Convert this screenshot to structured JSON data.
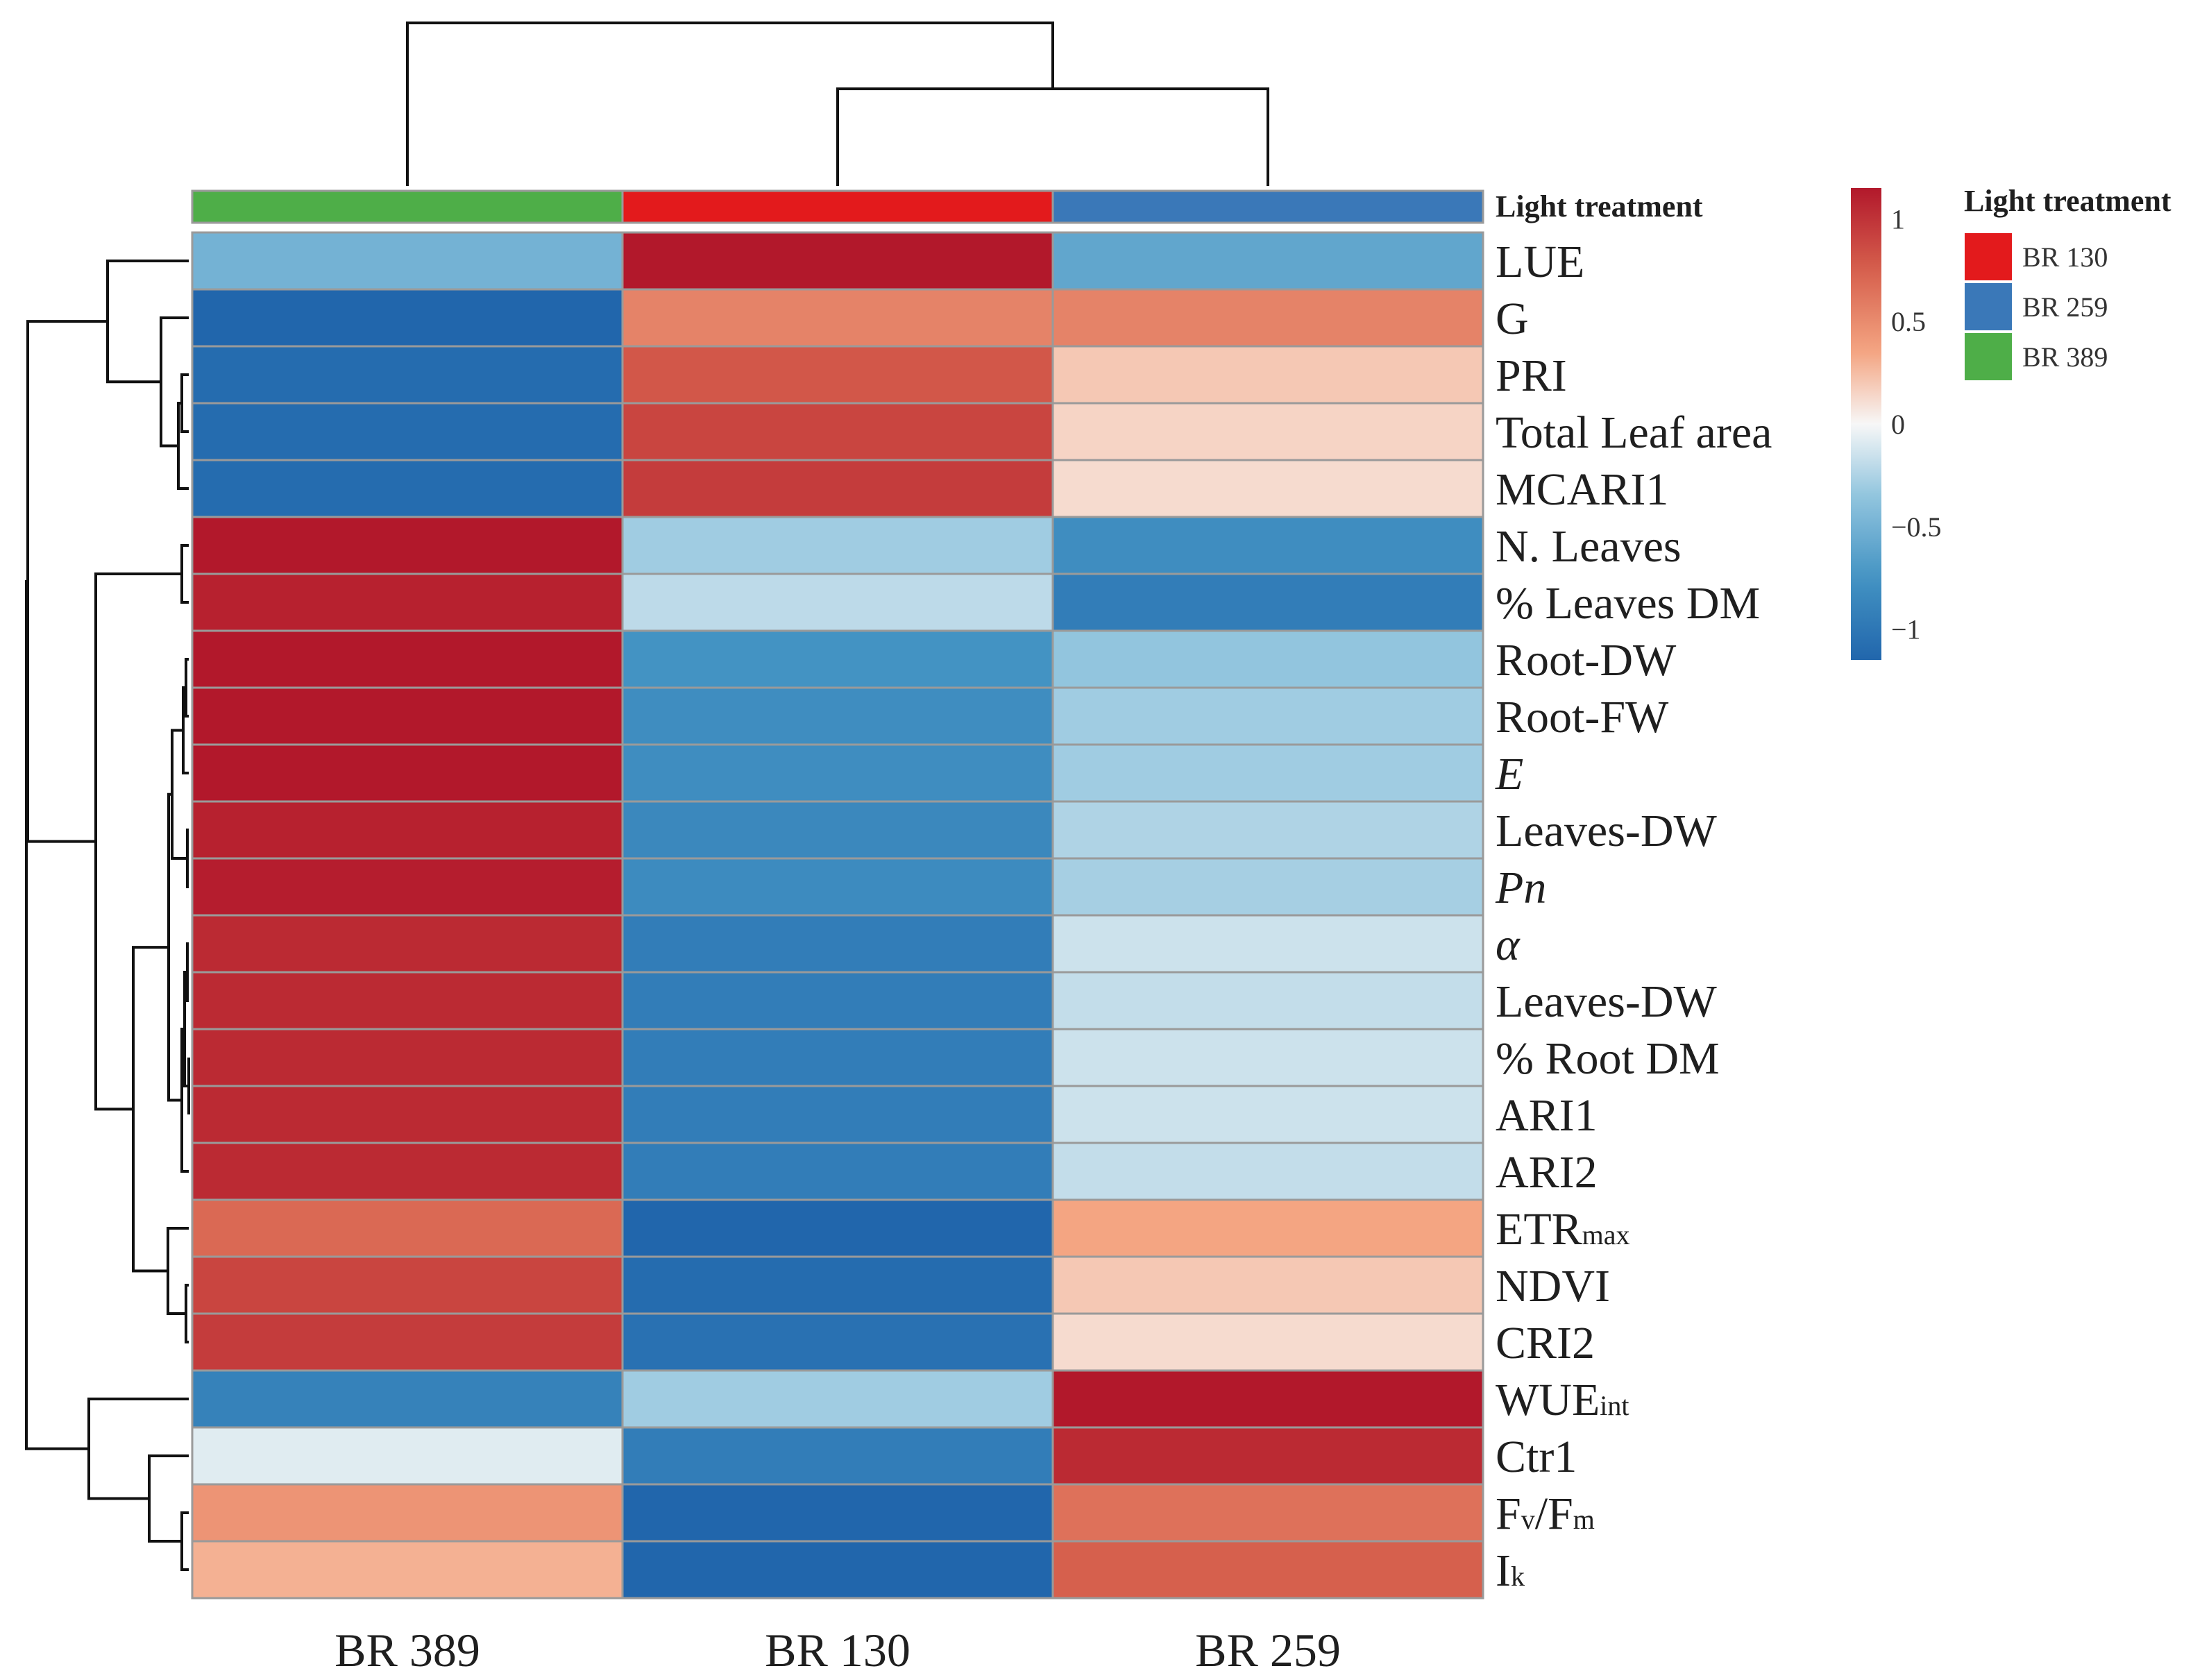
{
  "chart_data": {
    "type": "heatmap",
    "columns": [
      "BR 389",
      "BR 130",
      "BR 259"
    ],
    "annotation_title": "Light treatment",
    "annotation_legend": {
      "title": "Light treatment",
      "entries": [
        {
          "label": "BR 130",
          "color": "#e31a1c"
        },
        {
          "label": "BR 259",
          "color": "#3a78b8"
        },
        {
          "label": "BR 389",
          "color": "#4eae48"
        }
      ]
    },
    "column_annotation_colors": [
      "#4eae48",
      "#e31a1c",
      "#3a78b8"
    ],
    "color_scale": {
      "min": -1.15,
      "max": 1.15,
      "ticks": [
        {
          "value": 1,
          "label": "1"
        },
        {
          "value": 0.5,
          "label": "0.5"
        },
        {
          "value": 0,
          "label": "0"
        },
        {
          "value": -0.5,
          "label": "−0.5"
        },
        {
          "value": -1,
          "label": "−1"
        }
      ]
    },
    "rows": [
      {
        "label": "LUE",
        "sub": "",
        "italic": false,
        "values": [
          -0.5,
          1.15,
          -0.6
        ]
      },
      {
        "label": "G",
        "sub": "",
        "italic": false,
        "values": [
          -1.15,
          0.55,
          0.55
        ]
      },
      {
        "label": "PRI",
        "sub": "",
        "italic": false,
        "values": [
          -1.1,
          0.8,
          0.2
        ]
      },
      {
        "label": "Total Leaf area",
        "sub": "",
        "italic": false,
        "values": [
          -1.1,
          0.9,
          0.15
        ]
      },
      {
        "label": "MCARI1",
        "sub": "",
        "italic": false,
        "values": [
          -1.1,
          0.95,
          0.12
        ]
      },
      {
        "label": "N. Leaves",
        "sub": "",
        "italic": false,
        "values": [
          1.15,
          -0.3,
          -0.8
        ]
      },
      {
        "label": "% Leaves DM",
        "sub": "",
        "italic": false,
        "values": [
          1.1,
          -0.2,
          -0.95
        ]
      },
      {
        "label": "Root-DW",
        "sub": "",
        "italic": false,
        "values": [
          1.15,
          -0.75,
          -0.35
        ]
      },
      {
        "label": "Root-FW",
        "sub": "",
        "italic": false,
        "values": [
          1.15,
          -0.8,
          -0.3
        ]
      },
      {
        "label": "E",
        "sub": "",
        "italic": true,
        "values": [
          1.15,
          -0.8,
          -0.3
        ]
      },
      {
        "label": "Leaves-DW",
        "sub": "",
        "italic": false,
        "values": [
          1.1,
          -0.85,
          -0.25
        ]
      },
      {
        "label": "Pn",
        "sub": "",
        "italic": true,
        "values": [
          1.12,
          -0.82,
          -0.28
        ]
      },
      {
        "label": "α",
        "sub": "",
        "italic": true,
        "values": [
          1.05,
          -0.95,
          -0.15
        ]
      },
      {
        "label": "Leaves-DW",
        "sub": "",
        "italic": false,
        "values": [
          1.05,
          -0.95,
          -0.18
        ]
      },
      {
        "label": "% Root DM",
        "sub": "",
        "italic": false,
        "values": [
          1.05,
          -0.95,
          -0.15
        ]
      },
      {
        "label": "ARI1",
        "sub": "",
        "italic": false,
        "values": [
          1.05,
          -0.95,
          -0.15
        ]
      },
      {
        "label": "ARI2",
        "sub": "",
        "italic": false,
        "values": [
          1.05,
          -0.95,
          -0.18
        ]
      },
      {
        "label": "ETR",
        "sub": "max",
        "italic": false,
        "values": [
          0.7,
          -1.15,
          0.35
        ]
      },
      {
        "label": "NDVI",
        "sub": "",
        "italic": false,
        "values": [
          0.9,
          -1.1,
          0.2
        ]
      },
      {
        "label": "CRI2",
        "sub": "",
        "italic": false,
        "values": [
          0.95,
          -1.05,
          0.12
        ]
      },
      {
        "label": "WUE",
        "sub": "int",
        "italic": false,
        "values": [
          -0.9,
          -0.3,
          1.15
        ]
      },
      {
        "label": "Ctr1",
        "sub": "",
        "italic": false,
        "values": [
          -0.08,
          -0.95,
          1.05
        ]
      },
      {
        "label": "F",
        "sub": "",
        "italic": false,
        "display": "Fv/Fm",
        "values": [
          0.45,
          -1.15,
          0.65
        ]
      },
      {
        "label": "I",
        "sub": "k",
        "italic": false,
        "values": [
          0.3,
          -1.15,
          0.75
        ]
      }
    ]
  }
}
